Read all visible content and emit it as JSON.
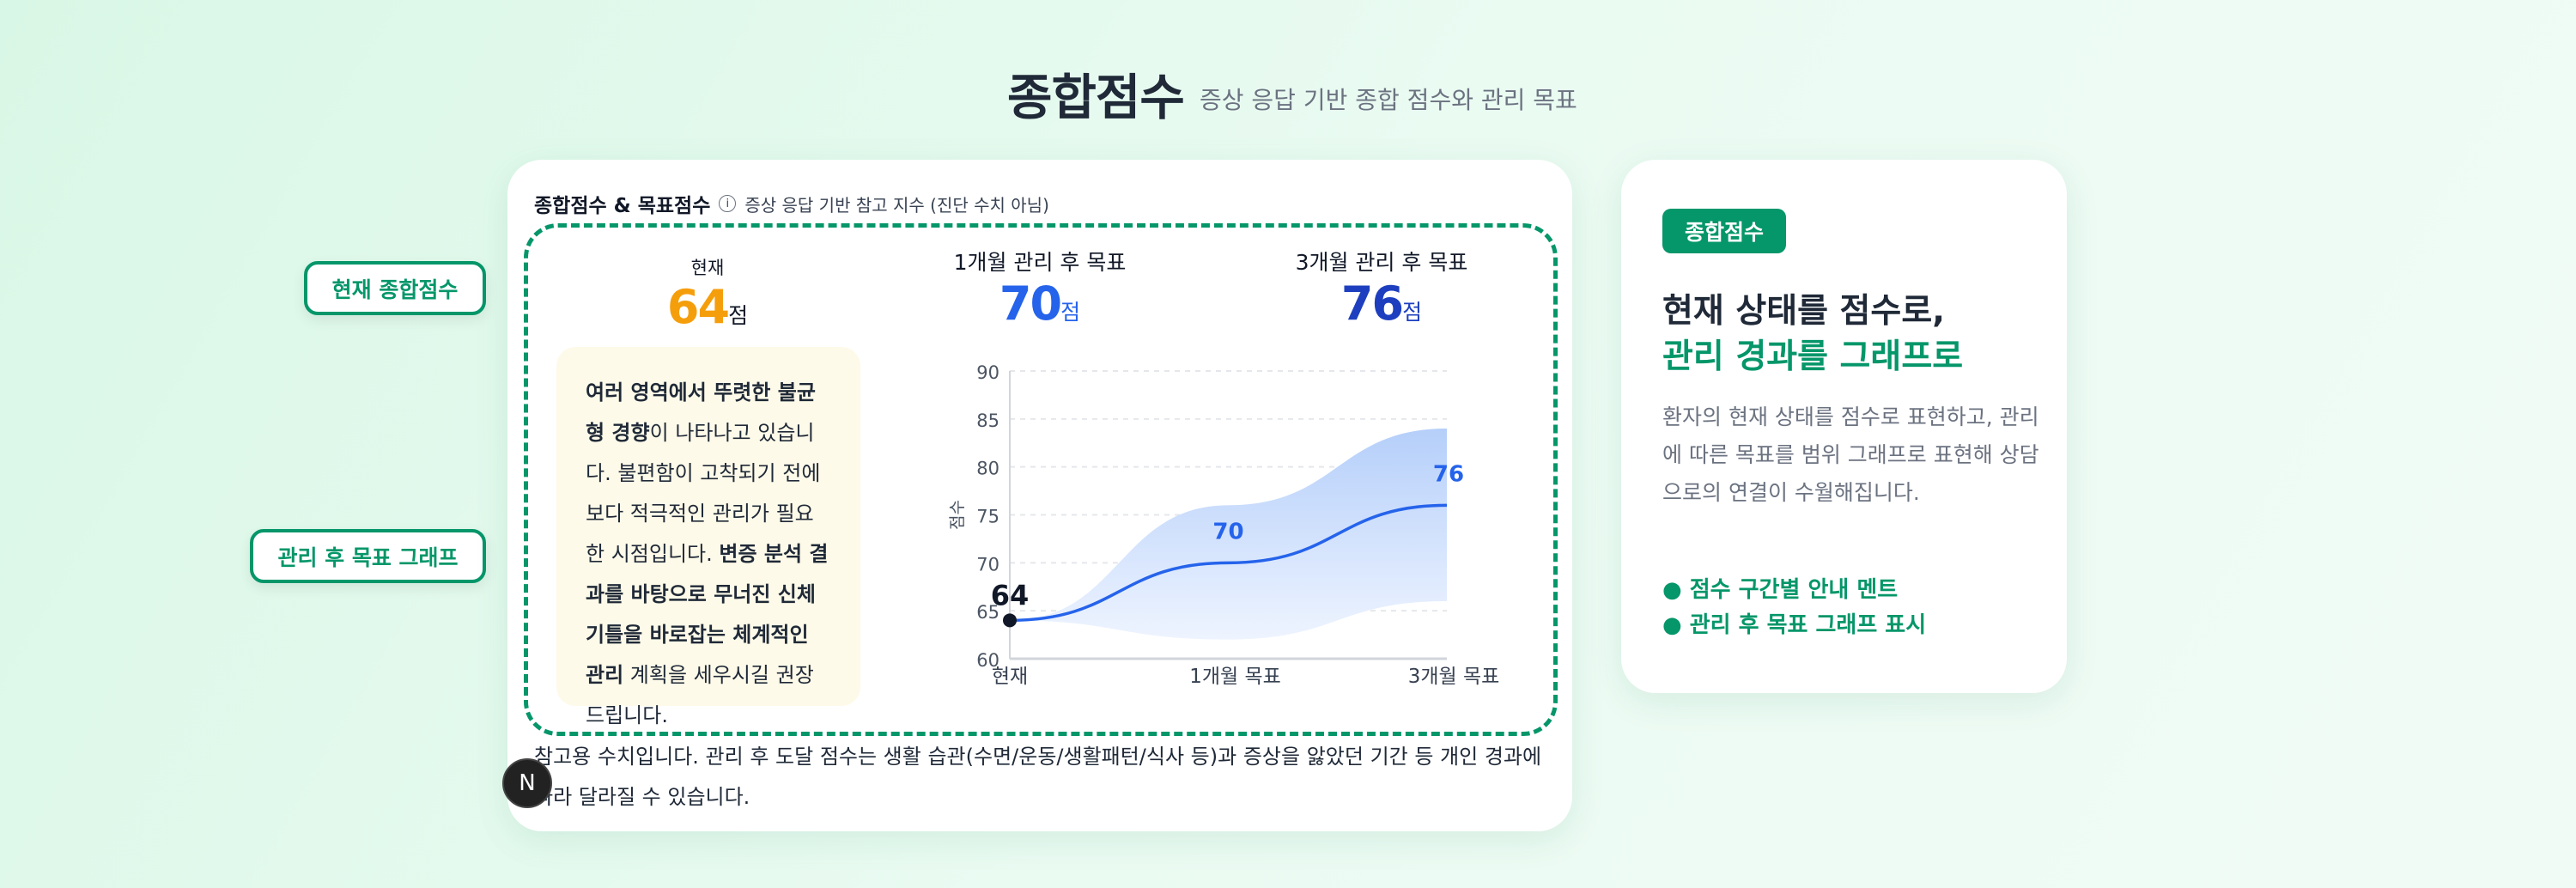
{
  "header": {
    "title": "종합점수",
    "subtitle": "증상 응답 기반 종합 점수와 관리 목표"
  },
  "side_labels": [
    "현재 종합점수",
    "관리 후 목표 그래프"
  ],
  "main_card": {
    "title": "종합점수 & 목표점수",
    "info_icon": "info-icon",
    "note": "증상 응답 기반 참고 지수 (진단 수치 아님)",
    "scores": [
      {
        "label": "현재",
        "value": "64",
        "unit": "점",
        "color": "#f59e0b"
      },
      {
        "label": "1개월 관리 후 목표",
        "value": "70",
        "unit": "점",
        "color": "#2563eb"
      },
      {
        "label": "3개월 관리 후 목표",
        "value": "76",
        "unit": "점",
        "color": "#1d3fbf"
      }
    ],
    "message": {
      "b1": "여러 영역에서 뚜렷한 불균형 경향",
      "t1": "이 나타나고 있습니다. 불편함이 고착되기 전에 보다 적극적인 관리가 필요한 시점입니다. ",
      "b2": "변증 분석 결과를 바탕으로 무너진 신체 기틀을 바로잡는 체계적인 관리",
      "t2": " 계획을 세우시길 권장드립니다."
    },
    "footnote": "참고용 수치입니다. 관리 후 도달 점수는 생활 습관(수면/운동/생활패턴/식사 등)과 증상을 앓았던 기간 등 개인 경과에 따라 달라질 수 있습니다.",
    "badge": "N"
  },
  "chart_data": {
    "type": "line",
    "categories": [
      "현재",
      "1개월 목표",
      "3개월 목표"
    ],
    "series": [
      {
        "values": [
          64,
          70,
          76
        ],
        "color": "#2563eb"
      }
    ],
    "band": {
      "lower": [
        64,
        62,
        66
      ],
      "upper": [
        64,
        76,
        84
      ]
    },
    "data_labels": [
      "64",
      "70",
      "76"
    ],
    "ylabel": "점수",
    "ylim": [
      60,
      90
    ],
    "yticks": [
      60,
      65,
      70,
      75,
      80,
      85,
      90
    ],
    "grid": true
  },
  "side_card": {
    "badge": "종합점수",
    "heading_line1": "현재 상태를 점수로,",
    "heading_line2": "관리 경과를 그래프로",
    "paragraph": "환자의 현재 상태를 점수로 표현하고, 관리에 따른 목표를 범위 그래프로 표현해 상담으로의 연결이 수월해집니다.",
    "bullets": [
      "● 점수 구간별 안내 멘트",
      "● 관리 후 목표 그래프 표시"
    ]
  }
}
